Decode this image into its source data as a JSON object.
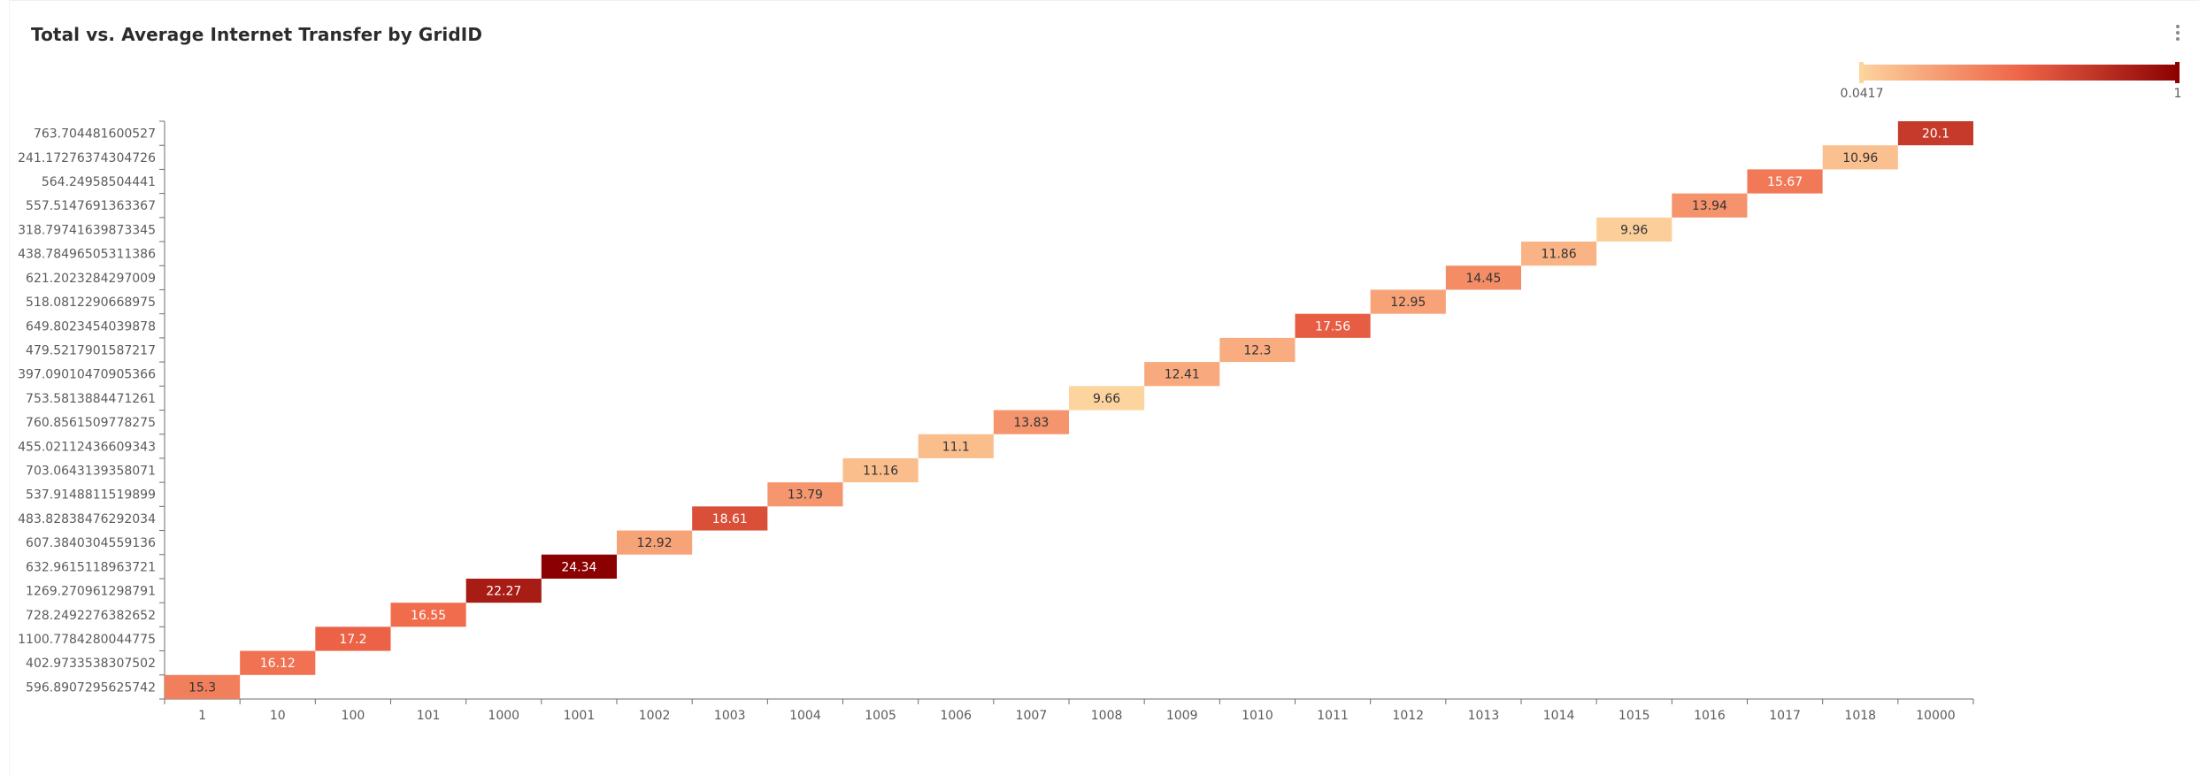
{
  "title": "Total vs. Average Internet Transfer by GridID",
  "menu_icon": "vertical-ellipsis-icon",
  "chart_data": {
    "type": "heatmap",
    "title": "Total vs. Average Internet Transfer by GridID",
    "x_categories": [
      "1",
      "10",
      "100",
      "101",
      "1000",
      "1001",
      "1002",
      "1003",
      "1004",
      "1005",
      "1006",
      "1007",
      "1008",
      "1009",
      "1010",
      "1011",
      "1012",
      "1013",
      "1014",
      "1015",
      "1016",
      "1017",
      "1018",
      "10000"
    ],
    "y_categories": [
      "596.8907295625742",
      "402.9733538307502",
      "1100.7784280044775",
      "728.2492276382652",
      "1269.270961298791",
      "632.9615118963721",
      "607.3840304559136",
      "483.82838476292034",
      "537.9148811519899",
      "703.0643139358071",
      "455.02112436609343",
      "760.8561509778275",
      "753.5813884471261",
      "397.09010470905366",
      "479.5217901587217",
      "649.8023454039878",
      "518.0812290668975",
      "621.2023284297009",
      "438.78496505311386",
      "318.79741639873345",
      "557.5147691363367",
      "564.24958504441",
      "241.17276374304726",
      "763.704481600527"
    ],
    "values": [
      15.3,
      16.12,
      17.2,
      16.55,
      22.27,
      24.34,
      12.92,
      18.61,
      13.79,
      11.16,
      11.1,
      13.83,
      9.66,
      12.41,
      12.3,
      17.56,
      12.95,
      14.45,
      11.86,
      9.96,
      13.94,
      15.67,
      10.96,
      20.1
    ],
    "value_labels": [
      "15.3",
      "16.12",
      "17.2",
      "16.55",
      "22.27",
      "24.34",
      "12.92",
      "18.61",
      "13.79",
      "11.16",
      "11.1",
      "13.83",
      "9.66",
      "12.41",
      "12.3",
      "17.56",
      "12.95",
      "14.45",
      "11.86",
      "9.96",
      "13.94",
      "15.67",
      "10.96",
      "20.1"
    ],
    "color_scale": {
      "min_label": "0.0417",
      "max_label": "1",
      "low_color": "#fdd49e",
      "mid_color": "#ef6548",
      "high_color": "#8b0000"
    },
    "legend_placement": "top-right",
    "grid": false
  }
}
